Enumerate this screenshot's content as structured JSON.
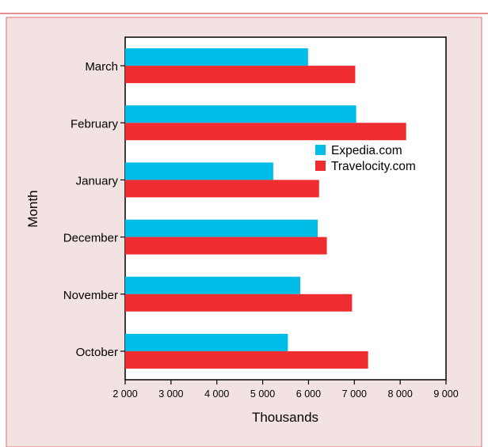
{
  "chart_data": {
    "type": "bar",
    "orientation": "horizontal",
    "categories": [
      "October",
      "November",
      "December",
      "January",
      "February",
      "March"
    ],
    "series": [
      {
        "name": "Expedia.com",
        "color": "#00bde8",
        "values": [
          5550,
          5820,
          6200,
          5230,
          7040,
          5990
        ]
      },
      {
        "name": "Travelocity.com",
        "color": "#ef2c2f",
        "values": [
          7300,
          6950,
          6400,
          6230,
          8130,
          7020
        ]
      }
    ],
    "xlabel": "Thousands",
    "ylabel": "Month",
    "xlim": [
      2000,
      9000
    ],
    "xticks": [
      "2 000",
      "3 000",
      "4 000",
      "5 000",
      "6 000",
      "7 000",
      "8 000",
      "9 000"
    ],
    "xtick_values": [
      2000,
      3000,
      4000,
      5000,
      6000,
      7000,
      8000,
      9000
    ],
    "grid": false,
    "legend_position": "right-upper",
    "background_color": "#f3e2e2",
    "border_color": "#e06d6d"
  }
}
